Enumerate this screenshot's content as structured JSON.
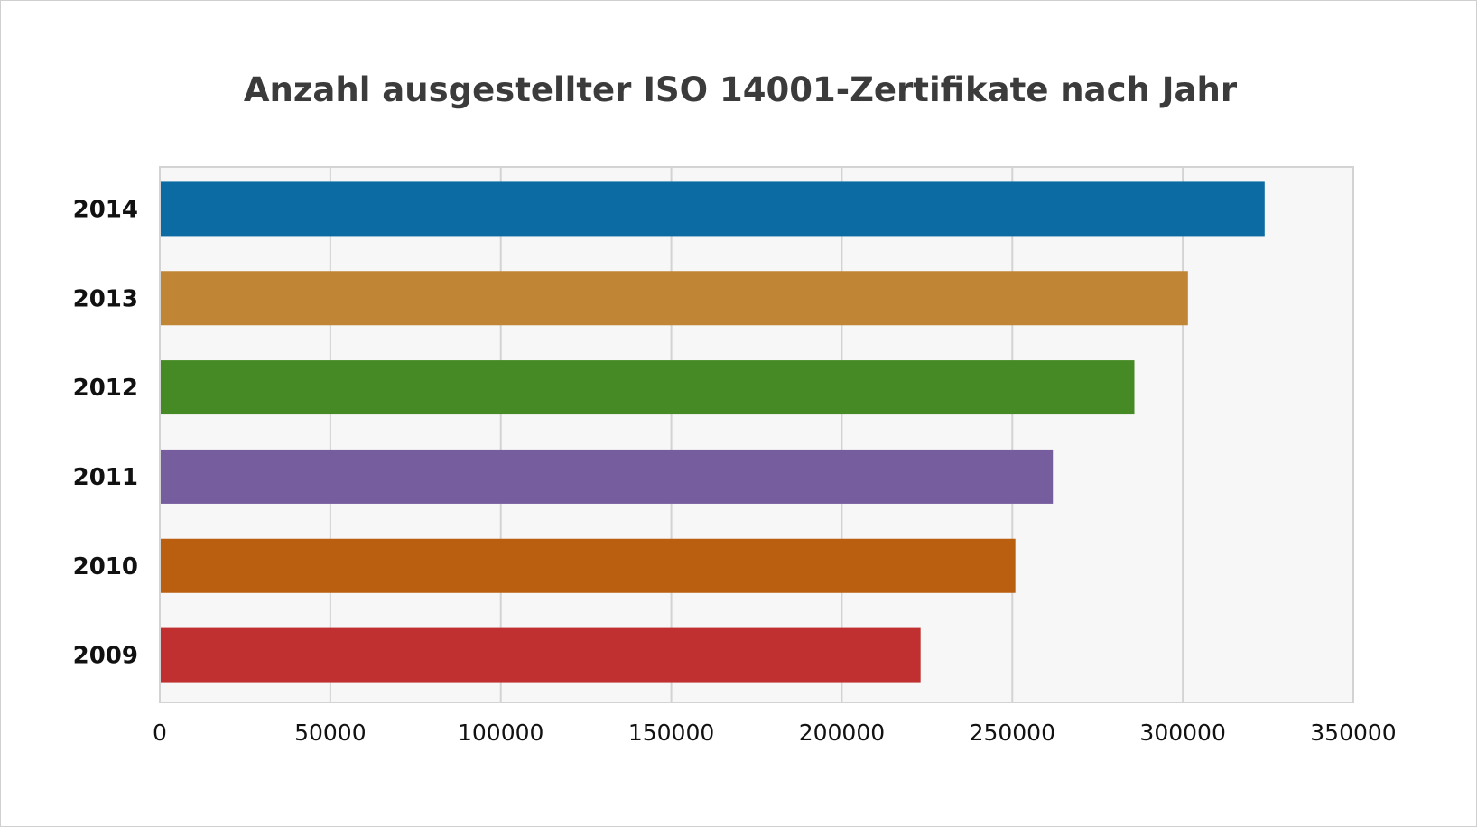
{
  "chart_data": {
    "type": "bar",
    "orientation": "horizontal",
    "title": "Anzahl ausgestellter ISO 14001-Zertifikate nach Jahr",
    "xlabel": "",
    "ylabel": "",
    "categories": [
      "2014",
      "2013",
      "2012",
      "2011",
      "2010",
      "2009"
    ],
    "values": [
      324000,
      301500,
      285800,
      261900,
      250900,
      223100
    ],
    "colors": [
      "#0b6ba2",
      "#c08535",
      "#468a25",
      "#765e9e",
      "#ba5e10",
      "#c03030"
    ],
    "xlim": [
      0,
      350000
    ],
    "xticks": [
      "0",
      "50000",
      "100000",
      "150000",
      "200000",
      "250000",
      "300000",
      "350000"
    ],
    "grid": true,
    "legend": "none",
    "plot_background": "#f7f7f7",
    "grid_color": "#d3d3d3"
  }
}
